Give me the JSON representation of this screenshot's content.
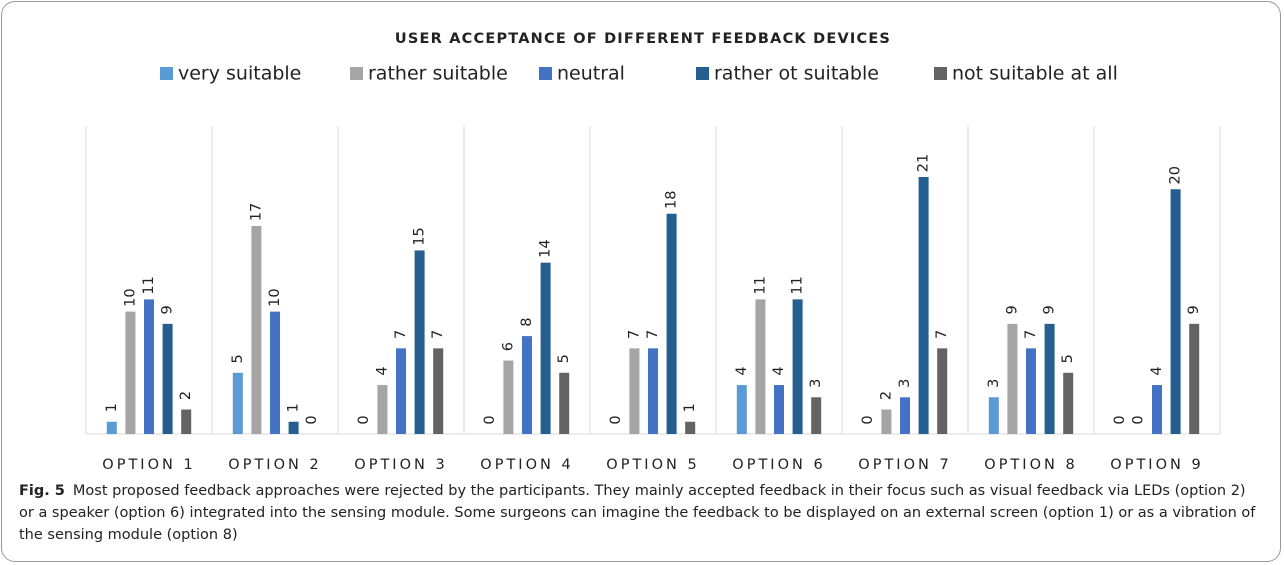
{
  "chart_data": {
    "type": "bar",
    "title": "USER ACCEPTANCE OF DIFFERENT FEEDBACK DEVICES",
    "categories": [
      "OPTION 1",
      "OPTION 2",
      "OPTION 3",
      "OPTION 4",
      "OPTION 5",
      "OPTION 6",
      "OPTION 7",
      "OPTION 8",
      "OPTION 9"
    ],
    "series": [
      {
        "name": "very suitable",
        "color": "#5b9bd5",
        "values": [
          1,
          5,
          0,
          0,
          0,
          4,
          0,
          3,
          0
        ]
      },
      {
        "name": "rather suitable",
        "color": "#a5a5a5",
        "values": [
          10,
          17,
          4,
          6,
          7,
          11,
          2,
          9,
          0
        ]
      },
      {
        "name": "neutral",
        "color": "#4472c4",
        "values": [
          11,
          10,
          7,
          8,
          7,
          4,
          3,
          7,
          4
        ]
      },
      {
        "name": "rather ot suitable",
        "color": "#255e91",
        "values": [
          9,
          1,
          15,
          14,
          18,
          11,
          21,
          9,
          20
        ]
      },
      {
        "name": "not suitable at all",
        "color": "#636363",
        "values": [
          2,
          0,
          7,
          5,
          1,
          3,
          7,
          5,
          9
        ]
      }
    ],
    "legend": "top"
  },
  "caption": {
    "label": "Fig. 5",
    "text": "Most proposed feedback approaches were rejected by the participants. They mainly accepted feedback in their focus such as visual feedback via LEDs (option 2) or a speaker (option 6) integrated into the sensing module. Some surgeons can imagine the feedback to be displayed on an external screen (option 1) or as a vibration of the sensing module (option 8)"
  }
}
